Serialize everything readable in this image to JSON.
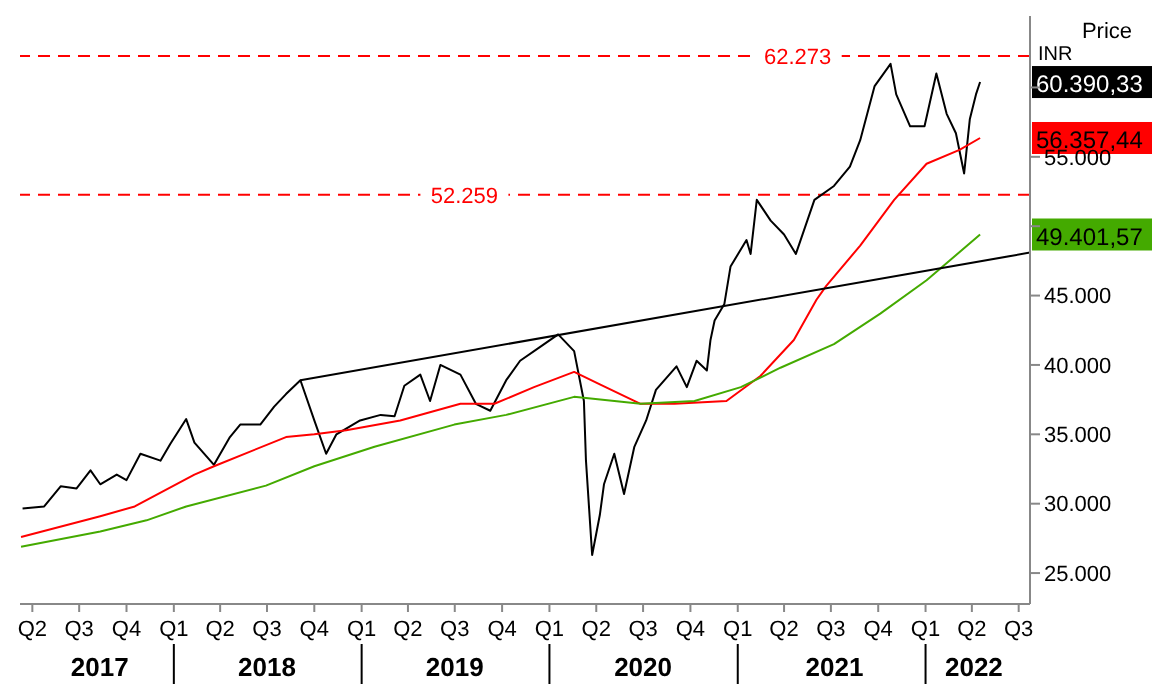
{
  "chart_data": {
    "type": "line",
    "ylabel": "Price",
    "xlim": [
      "2017-03-08",
      "2022-07-23"
    ],
    "xticks": [
      {
        "value": "2017-04-01",
        "label": "Q2"
      },
      {
        "value": "2017-07-01",
        "label": "Q3"
      },
      {
        "value": "2017-10-01",
        "label": "Q4"
      },
      {
        "value": "2018-01-01",
        "label": "Q1"
      },
      {
        "value": "2018-04-01",
        "label": "Q2"
      },
      {
        "value": "2018-07-01",
        "label": "Q3"
      },
      {
        "value": "2018-10-01",
        "label": "Q4"
      },
      {
        "value": "2019-01-01",
        "label": "Q1"
      },
      {
        "value": "2019-04-01",
        "label": "Q2"
      },
      {
        "value": "2019-07-01",
        "label": "Q3"
      },
      {
        "value": "2019-10-01",
        "label": "Q4"
      },
      {
        "value": "2020-01-01",
        "label": "Q1"
      },
      {
        "value": "2020-04-01",
        "label": "Q2"
      },
      {
        "value": "2020-07-01",
        "label": "Q3"
      },
      {
        "value": "2020-10-01",
        "label": "Q4"
      },
      {
        "value": "2021-01-01",
        "label": "Q1"
      },
      {
        "value": "2021-04-01",
        "label": "Q2"
      },
      {
        "value": "2021-07-01",
        "label": "Q3"
      },
      {
        "value": "2021-10-01",
        "label": "Q4"
      },
      {
        "value": "2022-01-01",
        "label": "Q1"
      },
      {
        "value": "2022-04-01",
        "label": "Q2"
      },
      {
        "value": "2022-07-01",
        "label": "Q3"
      }
    ],
    "x2lim": [
      "2017-03-08",
      "2022-07-23"
    ],
    "x2ticks": [
      {
        "value": "2017-08-10",
        "label": "2017"
      },
      {
        "value": "2018-01-01",
        "label": null
      },
      {
        "value": "2018-07-01",
        "label": "2018"
      },
      {
        "value": "2019-01-01",
        "label": null
      },
      {
        "value": "2019-07-01",
        "label": "2019"
      },
      {
        "value": "2020-01-01",
        "label": null
      },
      {
        "value": "2020-07-01",
        "label": "2020"
      },
      {
        "value": "2021-01-01",
        "label": null
      },
      {
        "value": "2021-07-08",
        "label": "2021"
      },
      {
        "value": "2022-01-01",
        "label": null
      },
      {
        "value": "2022-04-05",
        "label": "2022"
      }
    ],
    "ylim": [
      22770,
      65150
    ],
    "yticks": [
      {
        "value": 25000,
        "label": "25.000"
      },
      {
        "value": 30000,
        "label": "30.000"
      },
      {
        "value": 35000,
        "label": "35.000"
      },
      {
        "value": 40000,
        "label": "40.000"
      },
      {
        "value": 45000,
        "label": "45.000"
      },
      {
        "value": 50000,
        "label": null
      },
      {
        "value": 55000,
        "label": "55.000"
      },
      {
        "value": 60000,
        "label": null
      }
    ],
    "grid": false,
    "legend": false,
    "marker": "none",
    "line_style": "solid",
    "series": [
      {
        "color": "#000000",
        "x": [
          "2017-03-13",
          "2017-04-24",
          "2017-05-26",
          "2017-06-26",
          "2017-07-23",
          "2017-08-11",
          "2017-09-12",
          "2017-10-01",
          "2017-10-28",
          "2017-12-06",
          "2017-12-25",
          "2018-01-25",
          "2018-02-10",
          "2018-03-20",
          "2018-04-20",
          "2018-05-10",
          "2018-06-18",
          "2018-07-15",
          "2018-08-07",
          "2018-09-04",
          "2018-10-01",
          "2018-10-24",
          "2018-11-13",
          "2018-12-29",
          "2019-02-07",
          "2019-03-06",
          "2019-03-25",
          "2019-04-25",
          "2019-05-14",
          "2019-06-03",
          "2019-07-12",
          "2019-08-11",
          "2019-09-08",
          "2019-10-09",
          "2019-11-05",
          "2019-12-14",
          "2020-01-18",
          "2020-02-18",
          "2020-03-08",
          "2020-03-12",
          "2020-03-24",
          "2020-04-08",
          "2020-04-16",
          "2020-05-06",
          "2020-05-25",
          "2020-06-14",
          "2020-07-07",
          "2020-07-26",
          "2020-09-04",
          "2020-09-24",
          "2020-10-13",
          "2020-11-02",
          "2020-11-09",
          "2020-11-17",
          "2020-12-06",
          "2020-12-18",
          "2021-01-18",
          "2021-01-26",
          "2021-02-07",
          "2021-03-06",
          "2021-04-01",
          "2021-04-24",
          "2021-05-30",
          "2021-07-07",
          "2021-08-07",
          "2021-08-27",
          "2021-09-24",
          "2021-10-25",
          "2021-11-05",
          "2021-12-02",
          "2021-12-30",
          "2022-01-22",
          "2022-02-11",
          "2022-03-01",
          "2022-03-17",
          "2022-03-28",
          "2022-04-09",
          "2022-04-17"
        ],
        "values": [
          29650,
          29800,
          31250,
          31100,
          32400,
          31400,
          32100,
          31700,
          33600,
          33100,
          34300,
          36100,
          34400,
          32800,
          34800,
          35700,
          35700,
          37000,
          37900,
          38900,
          36000,
          33600,
          35000,
          36000,
          36400,
          36300,
          38500,
          39300,
          37400,
          40000,
          39300,
          37200,
          36700,
          38900,
          40300,
          41300,
          42200,
          41000,
          37400,
          33100,
          26300,
          29200,
          31400,
          33600,
          30700,
          34100,
          36000,
          38200,
          39900,
          38400,
          40300,
          39600,
          41800,
          43200,
          44400,
          47100,
          49000,
          48000,
          51900,
          50400,
          49400,
          48000,
          51900,
          52900,
          54300,
          56200,
          60100,
          61700,
          59500,
          57200,
          57200,
          61000,
          58100,
          56700,
          53800,
          57700,
          59500,
          60390.33
        ]
      },
      {
        "color": "#ff0000",
        "x": [
          "2017-03-10",
          "2017-08-11",
          "2017-10-17",
          "2018-02-10",
          "2018-03-20",
          "2018-08-07",
          "2018-10-01",
          "2018-12-02",
          "2019-03-17",
          "2019-07-12",
          "2019-09-16",
          "2019-12-02",
          "2020-02-18",
          "2020-04-08",
          "2020-06-26",
          "2020-08-31",
          "2020-12-10",
          "2021-02-14",
          "2021-04-20",
          "2021-06-03",
          "2021-06-22",
          "2021-08-27",
          "2021-11-01",
          "2022-01-03",
          "2022-03-08",
          "2022-04-17"
        ],
        "values": [
          27600,
          29100,
          29800,
          32100,
          32700,
          34800,
          35000,
          35300,
          36000,
          37200,
          37200,
          38400,
          39500,
          38600,
          37200,
          37200,
          37400,
          39200,
          41800,
          44700,
          45700,
          48600,
          51900,
          54500,
          55500,
          56357.44
        ]
      },
      {
        "color": "#44aa00",
        "x": [
          "2017-03-10",
          "2017-08-11",
          "2017-11-09",
          "2018-01-25",
          "2018-06-29",
          "2018-10-01",
          "2019-01-26",
          "2019-06-30",
          "2019-10-09",
          "2020-02-18",
          "2020-06-26",
          "2020-10-09",
          "2021-01-07",
          "2021-03-25",
          "2021-07-07",
          "2021-10-05",
          "2022-01-03",
          "2022-04-17"
        ],
        "values": [
          26900,
          28000,
          28800,
          29800,
          31300,
          32700,
          34100,
          35700,
          36400,
          37700,
          37200,
          37400,
          38400,
          39800,
          41500,
          43700,
          46100,
          49401.57
        ]
      },
      {
        "color": "#000000",
        "x": [
          "2018-09-04",
          "2022-07-23"
        ],
        "values": [
          38900,
          48100
        ]
      }
    ],
    "ref_lines": [
      {
        "axis": "y",
        "value": 62273,
        "label": "62.273",
        "color": "#ff0000",
        "line_style": "dashed"
      },
      {
        "axis": "y",
        "value": 52259,
        "label": "52.259",
        "color": "#ff0000",
        "line_style": "dashed"
      }
    ],
    "annotations": [
      "60.390,33",
      "56.357,44",
      "49.401,57",
      "INR"
    ]
  }
}
